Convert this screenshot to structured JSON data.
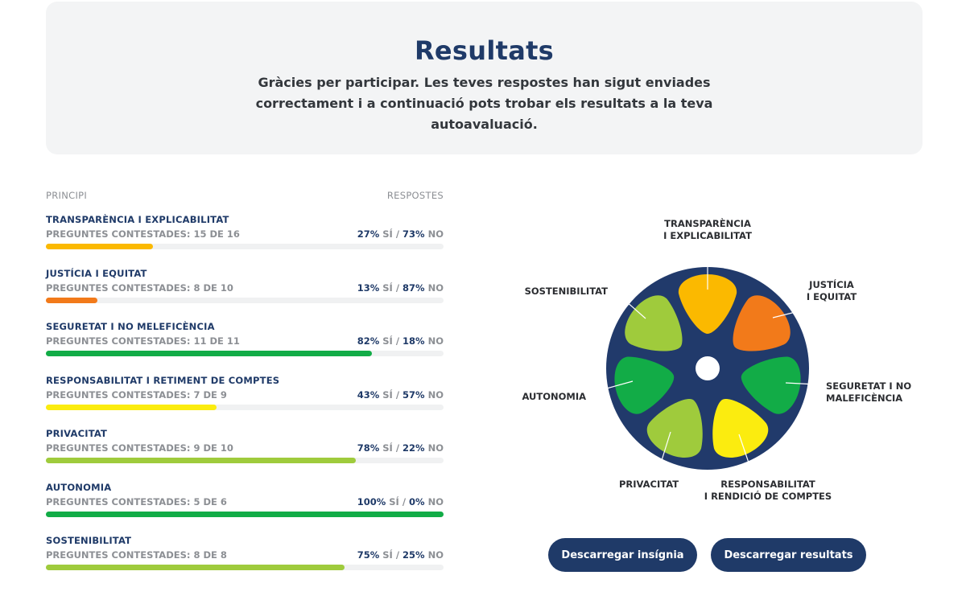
{
  "header": {
    "title": "Resultats",
    "subtitle": "Gràcies per participar. Les teves respostes han sigut enviades correctament i a continuació pots trobar els resultats a la teva autoavaluació."
  },
  "list": {
    "col_principle": "PRINCIPI",
    "col_answers": "RESPOSTES",
    "yes_label": "SÍ /",
    "no_label": "NO",
    "items": [
      {
        "name": "TRANSPARÈNCIA I EXPLICABILITAT",
        "answered": "PREGUNTES CONTESTADES: 15 DE 16",
        "yes": "27%",
        "no": "73%",
        "progress": 0.27,
        "color": "#fbb900"
      },
      {
        "name": "JUSTÍCIA I EQUITAT",
        "answered": "PREGUNTES CONTESTADES: 8 DE 10",
        "yes": "13%",
        "no": "87%",
        "progress": 0.13,
        "color": "#f27a1a"
      },
      {
        "name": "SEGURETAT I NO MELEFICÈNCIA",
        "answered": "PREGUNTES CONTESTADES: 11 DE 11",
        "yes": "82%",
        "no": "18%",
        "progress": 0.82,
        "color": "#12ac47"
      },
      {
        "name": "RESPONSABILITAT I RETIMENT DE COMPTES",
        "answered": "PREGUNTES CONTESTADES: 7 DE 9",
        "yes": "43%",
        "no": "57%",
        "progress": 0.43,
        "color": "#fbec0f"
      },
      {
        "name": "PRIVACITAT",
        "answered": "PREGUNTES CONTESTADES: 9 DE 10",
        "yes": "78%",
        "no": "22%",
        "progress": 0.78,
        "color": "#9fcb3c"
      },
      {
        "name": "AUTONOMIA",
        "answered": "PREGUNTES CONTESTADES: 5 DE 6",
        "yes": "100%",
        "no": "0%",
        "progress": 1.0,
        "color": "#12ac47"
      },
      {
        "name": "SOSTENIBILITAT",
        "answered": "PREGUNTES CONTESTADES: 8 DE 8",
        "yes": "75%",
        "no": "25%",
        "progress": 0.75,
        "color": "#9fcb3c"
      }
    ]
  },
  "wheel": {
    "background": "#213a6b",
    "segments": [
      {
        "lines": [
          "TRANSPARÈNCIA",
          "I EXPLICABILITAT"
        ],
        "color": "#fbb900"
      },
      {
        "lines": [
          "JUSTÍCIA",
          "I EQUITAT"
        ],
        "color": "#f27a1a"
      },
      {
        "lines": [
          "SEGURETAT I NO",
          "MALEFICÈNCIA"
        ],
        "color": "#12ac47"
      },
      {
        "lines": [
          "RESPONSABILITAT",
          "I RENDICIÓ DE COMPTES"
        ],
        "color": "#fbec0f"
      },
      {
        "lines": [
          "PRIVACITAT"
        ],
        "color": "#9fcb3c"
      },
      {
        "lines": [
          "AUTONOMIA"
        ],
        "color": "#12ac47"
      },
      {
        "lines": [
          "SOSTENIBILITAT"
        ],
        "color": "#9fcb3c"
      }
    ]
  },
  "buttons": {
    "badge": "Descarregar insígnia",
    "results": "Descarregar resultats"
  }
}
